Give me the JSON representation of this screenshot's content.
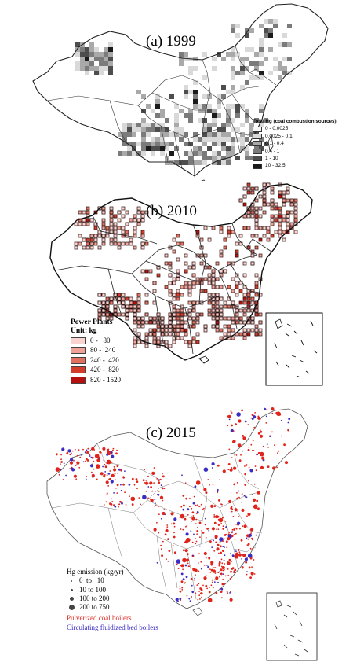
{
  "panels": {
    "a": {
      "title": "(a) 1999",
      "legend": {
        "title": "Total Hg (coal combustion sources)",
        "classes": [
          {
            "label": "0 - 0.0025",
            "color": "#f6f6f6"
          },
          {
            "label": "0.0025 - 0.1",
            "color": "#d9d9d9"
          },
          {
            "label": "0.1 - 0.4",
            "color": "#a9a9a9"
          },
          {
            "label": "0.4 - 1",
            "color": "#7b7b7b"
          },
          {
            "label": "1 - 10",
            "color": "#4d4d4d"
          },
          {
            "label": "10 - 32.5",
            "color": "#1a1a1a"
          }
        ]
      }
    },
    "b": {
      "title": "(b) 2010",
      "legend": {
        "title": "Power Plants",
        "unit": "Unit: kg",
        "classes": [
          {
            "label": "0 -   80",
            "color": "#f8d3d0"
          },
          {
            "label": "80 -  240",
            "color": "#efa398"
          },
          {
            "label": "240 -  420",
            "color": "#e2705f"
          },
          {
            "label": "420 -  820",
            "color": "#d33b2b"
          },
          {
            "label": "820 - 1520",
            "color": "#b60f0f"
          }
        ]
      }
    },
    "c": {
      "title": "(c) 2015",
      "legend": {
        "title": "Hg emission (kg/yr)",
        "classes": [
          {
            "label": "0  to   10",
            "size": "tiny"
          },
          {
            "label": "10 to 100",
            "size": "small"
          },
          {
            "label": "100 to 200",
            "size": "medium"
          },
          {
            "label": "200 to 750",
            "size": "large"
          }
        ]
      },
      "series": [
        {
          "name": "Pulverized coal boilers",
          "color": "#e0241b"
        },
        {
          "name": "Circulating fluidized bed boilers",
          "color": "#3a2cc4"
        }
      ]
    }
  }
}
